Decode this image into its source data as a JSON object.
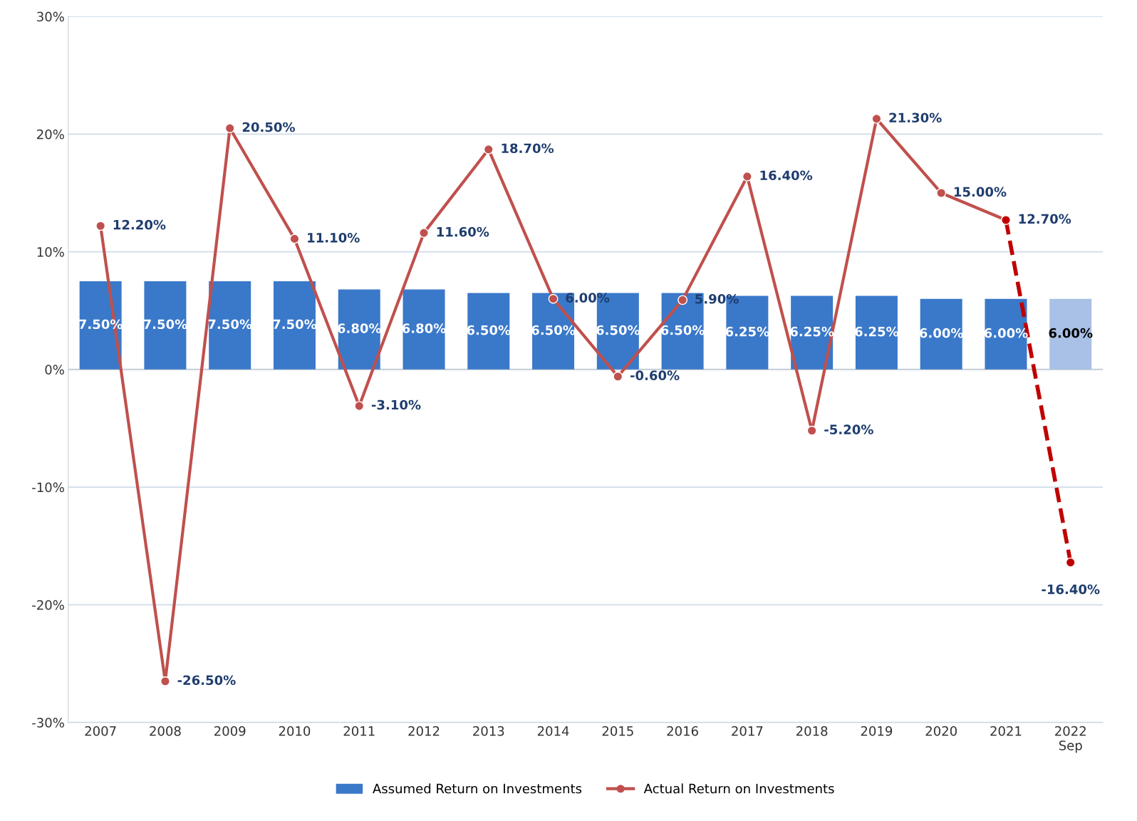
{
  "chart_data": {
    "type": "bar",
    "categories": [
      "2007",
      "2008",
      "2009",
      "2010",
      "2011",
      "2012",
      "2013",
      "2014",
      "2015",
      "2016",
      "2017",
      "2018",
      "2019",
      "2020",
      "2021",
      "2022\nSep"
    ],
    "series": [
      {
        "name": "Assumed Return on Investments",
        "color": "#3a78c9",
        "colors": [
          "#3a78c9",
          "#3a78c9",
          "#3a78c9",
          "#3a78c9",
          "#3a78c9",
          "#3a78c9",
          "#3a78c9",
          "#3a78c9",
          "#3a78c9",
          "#3a78c9",
          "#3a78c9",
          "#3a78c9",
          "#3a78c9",
          "#3a78c9",
          "#3a78c9",
          "#a9c1e6"
        ],
        "values": [
          7.5,
          7.5,
          7.5,
          7.5,
          6.8,
          6.8,
          6.5,
          6.5,
          6.5,
          6.5,
          6.25,
          6.25,
          6.25,
          6.0,
          6.0,
          6.0
        ],
        "value_labels": [
          "7.50%",
          "7.50%",
          "7.50%",
          "7.50%",
          "6.80%",
          "6.80%",
          "6.50%",
          "6.50%",
          "6.50%",
          "6.50%",
          "6.25%",
          "6.25%",
          "6.25%",
          "6.00%",
          "6.00%",
          "6.00%"
        ]
      },
      {
        "name": "Actual Return on Investments",
        "type": "line",
        "color": "#c0504d",
        "marker": "circle",
        "line_style": "solid",
        "values": [
          12.2,
          -26.5,
          20.5,
          11.1,
          -3.1,
          11.6,
          18.7,
          6.0,
          -0.6,
          5.9,
          16.4,
          -5.2,
          21.3,
          15.0,
          12.7,
          null
        ],
        "value_labels": [
          "12.20%",
          "-26.50%",
          "20.50%",
          "11.10%",
          "-3.10%",
          "11.60%",
          "18.70%",
          "6.00%",
          "-0.60%",
          "5.90%",
          "16.40%",
          "-5.20%",
          "21.30%",
          "15.00%",
          "12.70%",
          null
        ]
      },
      {
        "type": "line",
        "color": "#c00000",
        "marker": "circle",
        "line_style": "dashed",
        "values": [
          null,
          null,
          null,
          null,
          null,
          null,
          null,
          null,
          null,
          null,
          null,
          null,
          null,
          null,
          12.7,
          -16.4
        ],
        "value_labels": [
          null,
          null,
          null,
          null,
          null,
          null,
          null,
          null,
          null,
          null,
          null,
          null,
          null,
          null,
          null,
          "-16.40%"
        ]
      }
    ],
    "ylim": [
      -30,
      30
    ],
    "yticks": [
      {
        "value": -30,
        "label": "-30%"
      },
      {
        "value": -20,
        "label": "-20%"
      },
      {
        "value": -10,
        "label": "-10%"
      },
      {
        "value": 0,
        "label": "0%"
      },
      {
        "value": 10,
        "label": "10%"
      },
      {
        "value": 20,
        "label": "20%"
      },
      {
        "value": 30,
        "label": "30%"
      }
    ],
    "grid": "y",
    "legend": "bottom"
  }
}
